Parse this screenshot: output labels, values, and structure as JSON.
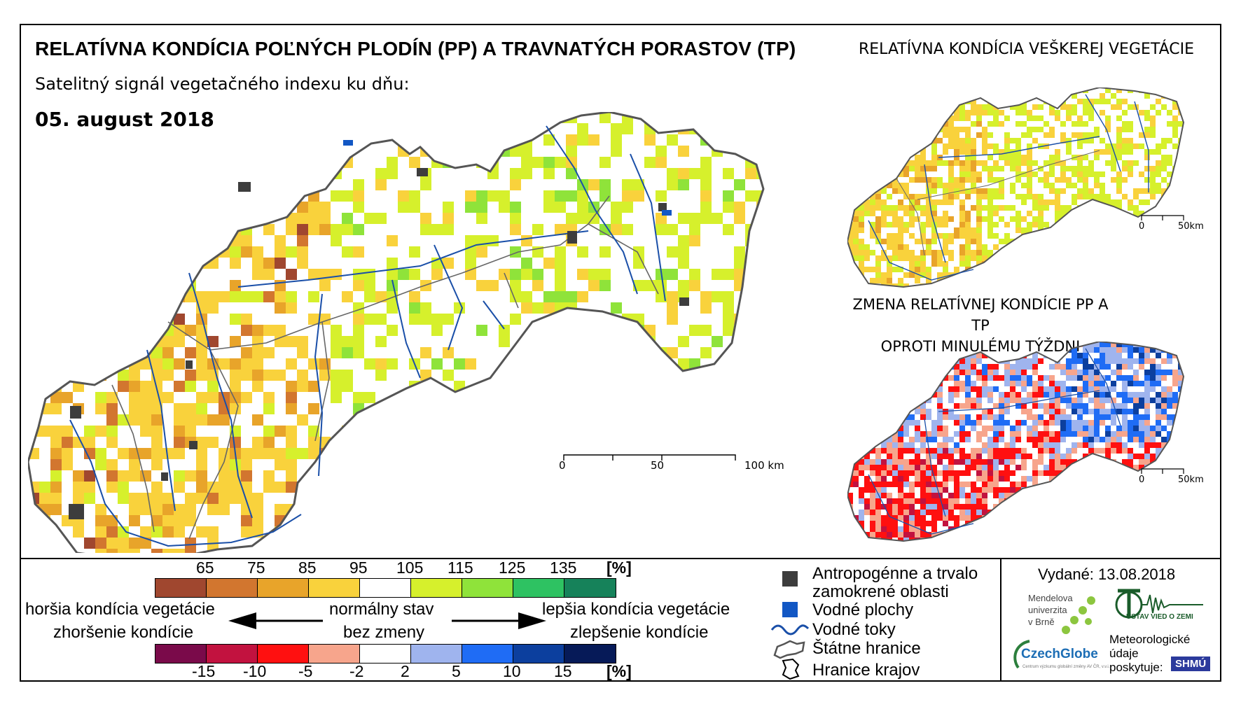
{
  "titles": {
    "main": "RELATÍVNA KONDÍCIA POĽNÝCH PLODÍN (PP) A TRAVNATÝCH PORASTOV (TP)",
    "right_top": "RELATÍVNA KONDÍCIA VEŠKEREJ VEGETÁCIE",
    "subtitle": "Satelitný signál vegetačného indexu ku dňu:",
    "date": "05. august 2018",
    "change_line1": "ZMENA RELATÍVNEJ KONDÍCIE PP A TP",
    "change_line2": "OPROTI MINULÉMU TÝŽDNI"
  },
  "scalebars": {
    "main": {
      "labels": [
        "0",
        "50",
        "100 km"
      ]
    },
    "small_top": {
      "labels": [
        "0",
        "50km"
      ]
    },
    "small_bottom": {
      "labels": [
        "0",
        "50km"
      ]
    }
  },
  "legend_condition": {
    "unit": "[%]",
    "ticks": [
      "65",
      "75",
      "85",
      "95",
      "105",
      "115",
      "125",
      "135"
    ],
    "colors": [
      "#a0472f",
      "#d2762f",
      "#e8a42a",
      "#f9d23c",
      "#ffffff",
      "#d6f02c",
      "#8fe33a",
      "#2ec262",
      "#16825a"
    ]
  },
  "legend_change": {
    "unit": "[%]",
    "ticks": [
      "-15",
      "-10",
      "-5",
      "-2",
      "2",
      "5",
      "10",
      "15"
    ],
    "colors": [
      "#7a0a4a",
      "#c2123f",
      "#ff1010",
      "#f7a58c",
      "#ffffff",
      "#9fb4ee",
      "#1f6cf5",
      "#0c3f9e",
      "#061a58"
    ]
  },
  "legend_text": {
    "worse_condition": "horšia kondícia vegetácie",
    "worse_change": "zhoršenie kondície",
    "normal": "normálny stav",
    "no_change": "bez zmeny",
    "better_condition": "lepšia kondícia vegetácie",
    "better_change": "zlepšenie kondície"
  },
  "map_legend": {
    "anthropogenic_1": "Antropogénne a trvalo",
    "anthropogenic_2": "zamokrené oblasti",
    "water_bodies": "Vodné plochy",
    "rivers": "Vodné toky",
    "state_border": "Štátne hranice",
    "regions_border": "Hranice krajov",
    "colors": {
      "anthropogenic": "#3d3d3d",
      "water": "#1257c4",
      "river": "#1a4fa8"
    }
  },
  "credits": {
    "issued": "Vydané: 13.08.2018",
    "mendel_1": "Mendelova",
    "mendel_2": "univerzita",
    "mendel_3": "v Brně",
    "czechglobe": "CzechGlobe",
    "czechglobe_sub": "Centrum výzkumu globální změny AV ČR, v.v.i.",
    "usp_name": "ÚSTAV VIED O ZEMI",
    "meteo_1": "Meteorologické",
    "meteo_2": "údaje",
    "meteo_3": "poskytuje:",
    "shmu": "SHMÚ"
  },
  "map_colors": {
    "main": [
      "#ffffff",
      "#ffffff",
      "#ffffff",
      "#f9d23c",
      "#f9d23c",
      "#d6f02c",
      "#d6f02c",
      "#e8a42a",
      "#8fe33a",
      "#d2762f"
    ],
    "top_small": [
      "#ffffff",
      "#ffffff",
      "#ffffff",
      "#f9d23c",
      "#d6f02c",
      "#d6f02c",
      "#e8a42a"
    ],
    "bottom_small": [
      "#ffffff",
      "#f7a58c",
      "#ff1010",
      "#9fb4ee",
      "#1f6cf5",
      "#0c3f9e",
      "#c2123f",
      "#ffffff"
    ]
  }
}
